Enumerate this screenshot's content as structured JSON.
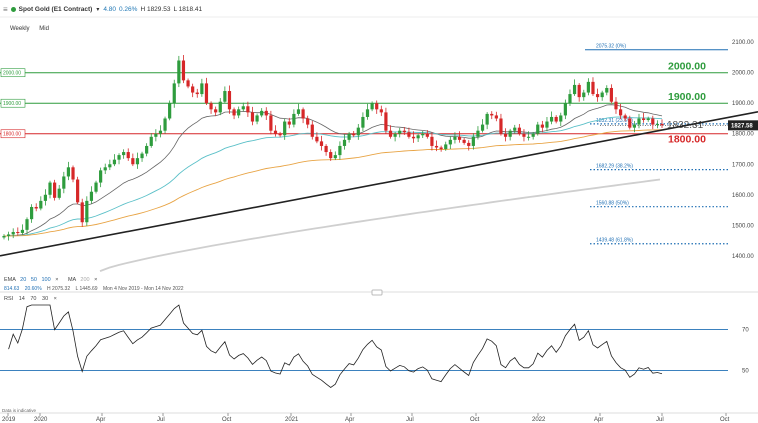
{
  "header": {
    "title": "Spot Gold (E1 Contract)",
    "change": "4.80",
    "change_pct": "0.26%",
    "high": "H 1829.53",
    "low": "L 1818.41"
  },
  "toolbar": {
    "weekly": "Weekly",
    "mid": "Mid"
  },
  "colors": {
    "up": "#2e9c3d",
    "down": "#d62728",
    "ema20": "#666666",
    "ema50": "#5bc0c8",
    "ema100": "#e8a445",
    "ma200": "#cfcfcf",
    "trend": "#222222",
    "fib": "#1f6fb4",
    "res": "#2e9c3d",
    "sup": "#d62728",
    "rsi": "#222222"
  },
  "ema_legend": {
    "label": "EMA",
    "p20": "20",
    "p50": "50",
    "p100": "100",
    "close": "×",
    "ma_label": "MA",
    "ma_p": "200",
    "ma_close": "×"
  },
  "stats_row": {
    "a": "814.63",
    "b": "20.60%",
    "c": "H 2075.32",
    "d": "L 1445.69",
    "range": "Mon 4 Nov 2019 - Mon 14 Nov 2022"
  },
  "rsi_legend": {
    "label": "RSI",
    "p1": "14",
    "p2": "70",
    "p3": "30",
    "close": "×"
  },
  "disclaimer": "Data is indicative",
  "chart_data": {
    "type": "candlestick",
    "price_axis": {
      "ticks": [
        1400,
        1500,
        1600,
        1700,
        1800,
        1900,
        2000,
        2100
      ],
      "ylim": [
        1360,
        2140
      ]
    },
    "x_axis_labels": [
      "2019",
      "2020",
      "Apr",
      "Jul",
      "Oct",
      "2021",
      "Apr",
      "Jul",
      "Oct",
      "2022",
      "Apr",
      "Jul",
      "Oct"
    ],
    "levels": [
      {
        "value": 2000,
        "label": "2000.00",
        "tag": "2000.00",
        "kind": "res"
      },
      {
        "value": 1900,
        "label": "1900.00",
        "tag": "1900.00",
        "kind": "res"
      },
      {
        "value": 1800,
        "label": "1800.00",
        "tag": "1800.00",
        "kind": "sup"
      }
    ],
    "fib_levels": [
      {
        "value": 2075.32,
        "label": "2075.32 (0%)"
      },
      {
        "value": 1832.31,
        "label": "1832.31 (23.6%)"
      },
      {
        "value": 1682.29,
        "label": "1682.29 (38.2%)"
      },
      {
        "value": 1560.88,
        "label": "1560.88 (50%)"
      },
      {
        "value": 1439.48,
        "label": "1439.48 (61.8%)"
      }
    ],
    "big_label_1832": "1832.31",
    "last_price": "1827.58",
    "trendline": {
      "start": [
        0,
        1400
      ],
      "end": [
        1,
        1860
      ]
    },
    "ohlc_weekly_close": [
      1465,
      1470,
      1478,
      1475,
      1485,
      1520,
      1560,
      1555,
      1580,
      1600,
      1640,
      1590,
      1620,
      1660,
      1690,
      1650,
      1575,
      1510,
      1580,
      1610,
      1640,
      1680,
      1690,
      1700,
      1715,
      1730,
      1740,
      1720,
      1700,
      1720,
      1735,
      1760,
      1790,
      1800,
      1810,
      1850,
      1900,
      1965,
      2040,
      1975,
      1955,
      1935,
      1930,
      1965,
      1900,
      1880,
      1870,
      1905,
      1940,
      1880,
      1860,
      1880,
      1890,
      1870,
      1840,
      1860,
      1875,
      1860,
      1810,
      1800,
      1795,
      1840,
      1830,
      1865,
      1880,
      1850,
      1830,
      1790,
      1775,
      1760,
      1740,
      1720,
      1730,
      1760,
      1780,
      1800,
      1795,
      1820,
      1855,
      1880,
      1900,
      1880,
      1870,
      1810,
      1790,
      1800,
      1810,
      1805,
      1790,
      1785,
      1795,
      1800,
      1790,
      1760,
      1755,
      1750,
      1765,
      1780,
      1790,
      1780,
      1770,
      1760,
      1790,
      1810,
      1830,
      1865,
      1860,
      1850,
      1800,
      1790,
      1810,
      1820,
      1800,
      1790,
      1790,
      1800,
      1830,
      1820,
      1840,
      1855,
      1840,
      1860,
      1900,
      1930,
      1960,
      1920,
      1935,
      1970,
      1930,
      1920,
      1935,
      1950,
      1905,
      1880,
      1860,
      1850,
      1820,
      1830,
      1850,
      1845,
      1850,
      1830,
      1832,
      1828
    ],
    "rsi": {
      "levels": [
        70,
        50
      ],
      "labels": [
        "70",
        "50"
      ]
    }
  }
}
